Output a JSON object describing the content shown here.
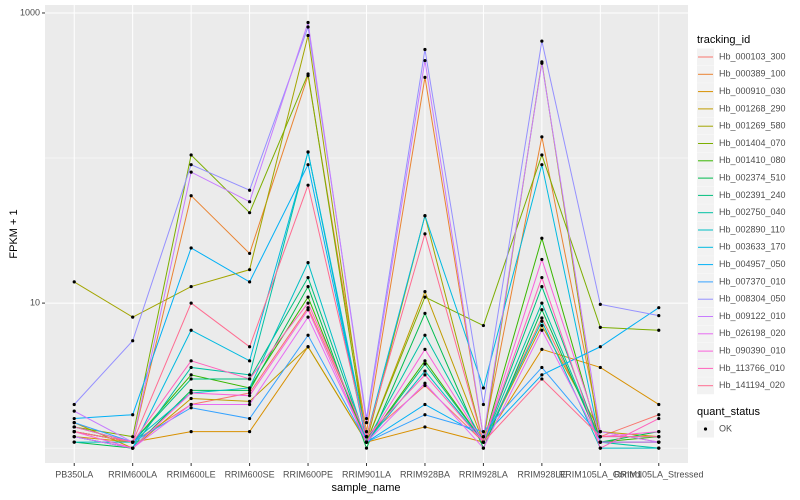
{
  "chart_data": {
    "type": "line",
    "x_label": "sample_name",
    "y_label": "FPKM + 1",
    "categories": [
      "PB350LA",
      "RRIM600LA",
      "RRIM600LE",
      "RRIM600SE",
      "RRIM600PE",
      "RRIM901LA",
      "RRIM928BA",
      "RRIM928LA",
      "RRIM928LE",
      "RRIM105LA_Control",
      "RRIM105LA_Stressed"
    ],
    "log_scale": true,
    "ylim": [
      0.79,
      1135
    ],
    "yticks": [
      10,
      1000
    ],
    "grid": true,
    "legend_title": "tracking_id",
    "legend_position": "right",
    "shape_legend": {
      "title": "quant_status",
      "labels": [
        "OK"
      ]
    },
    "point_color": "#000000",
    "series": [
      {
        "name": "Hb_000103_300",
        "color": "#F8766D",
        "values": [
          1.3,
          1.1,
          2.0,
          2.4,
          9.3,
          1.2,
          2.7,
          1.1,
          7.9,
          1.2,
          1.7
        ]
      },
      {
        "name": "Hb_000389_100",
        "color": "#EA8331",
        "values": [
          1.3,
          1.1,
          55,
          22,
          370,
          1.3,
          360,
          1.2,
          140,
          1.3,
          1.1
        ]
      },
      {
        "name": "Hb_000910_030",
        "color": "#D89000",
        "values": [
          1.2,
          1.1,
          1.3,
          1.3,
          5.0,
          1.1,
          1.4,
          1.1,
          4.8,
          3.6,
          2.0
        ]
      },
      {
        "name": "Hb_001268_290",
        "color": "#C09B00",
        "values": [
          1.5,
          1.0,
          2.2,
          2.1,
          5.0,
          1.1,
          12,
          1.1,
          7.0,
          1.3,
          1.2
        ]
      },
      {
        "name": "Hb_001269_580",
        "color": "#A3A500",
        "values": [
          14,
          8.0,
          13,
          17,
          700,
          1.1,
          40,
          1.1,
          460,
          1.1,
          1.1
        ]
      },
      {
        "name": "Hb_001404_070",
        "color": "#7CAE00",
        "values": [
          1.4,
          1.2,
          105,
          42,
          380,
          1.1,
          11,
          7.0,
          105,
          6.8,
          6.5
        ]
      },
      {
        "name": "Hb_001410_080",
        "color": "#39B600",
        "values": [
          1.3,
          1.1,
          3.2,
          2.6,
          11,
          1.1,
          4.0,
          1.1,
          28,
          1.1,
          1.2
        ]
      },
      {
        "name": "Hb_002374_510",
        "color": "#00BB4E",
        "values": [
          1.1,
          1.0,
          2.5,
          2.5,
          13,
          1.0,
          8.5,
          1.0,
          9,
          1.1,
          1.3
        ]
      },
      {
        "name": "Hb_002391_240",
        "color": "#00BF7D",
        "values": [
          1.4,
          1.1,
          3.0,
          3.0,
          15,
          1.1,
          3.8,
          1.1,
          13,
          1.1,
          1.1
        ]
      },
      {
        "name": "Hb_002750_040",
        "color": "#00C1A3",
        "values": [
          1.2,
          1.0,
          3.6,
          3.2,
          110,
          1.1,
          6.0,
          1.1,
          10,
          1.1,
          1.0
        ]
      },
      {
        "name": "Hb_002890_110",
        "color": "#00BFC4",
        "values": [
          1.1,
          1.1,
          2.4,
          2.6,
          19,
          1.1,
          3.4,
          1.1,
          7.5,
          1.0,
          1.0
        ]
      },
      {
        "name": "Hb_003633_170",
        "color": "#00BAE0",
        "values": [
          1.2,
          1.0,
          6.5,
          4.0,
          110,
          1.2,
          40,
          2.6,
          90,
          1.1,
          1.1
        ]
      },
      {
        "name": "Hb_004957_050",
        "color": "#00B0F6",
        "values": [
          1.6,
          1.7,
          24,
          14,
          90,
          1.1,
          2.0,
          1.2,
          3.2,
          5.0,
          9.3
        ]
      },
      {
        "name": "Hb_007370_010",
        "color": "#35A2FF",
        "values": [
          1.5,
          1.1,
          1.9,
          1.6,
          6,
          1.1,
          1.7,
          1.3,
          3.6,
          1.2,
          1.2
        ]
      },
      {
        "name": "Hb_008304_050",
        "color": "#9590FF",
        "values": [
          2.0,
          5.5,
          90,
          60,
          800,
          1.6,
          560,
          2.0,
          640,
          9.8,
          8.2
        ]
      },
      {
        "name": "Hb_009122_010",
        "color": "#C77CFF",
        "values": [
          1.8,
          1.1,
          80,
          50,
          860,
          1.5,
          470,
          1.2,
          450,
          1.3,
          1.1
        ]
      },
      {
        "name": "Hb_026198_020",
        "color": "#E76BF3",
        "values": [
          1.2,
          1.0,
          2.0,
          2.0,
          8,
          1.1,
          2.8,
          1.0,
          6.5,
          1.1,
          1.1
        ]
      },
      {
        "name": "Hb_090390_010",
        "color": "#FA62DB",
        "values": [
          1.3,
          1.0,
          2.4,
          2.3,
          9,
          1.1,
          4.8,
          1.1,
          20,
          1.2,
          1.3
        ]
      },
      {
        "name": "Hb_113766_010",
        "color": "#FF62BC",
        "values": [
          1.4,
          1.1,
          4.0,
          3.0,
          10,
          1.2,
          3.2,
          1.1,
          15,
          1.0,
          1.6
        ]
      },
      {
        "name": "Hb_141194_020",
        "color": "#FF6C91",
        "values": [
          1.3,
          1.1,
          10,
          5.0,
          65,
          1.2,
          30,
          1.1,
          3.0,
          1.2,
          1.2
        ]
      }
    ]
  }
}
